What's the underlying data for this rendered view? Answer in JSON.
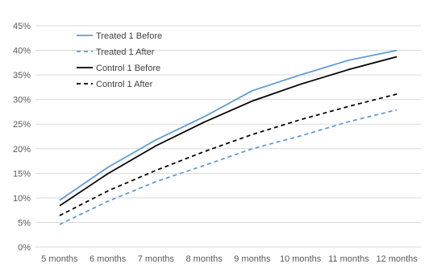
{
  "chart_data": {
    "type": "line",
    "title": "",
    "xlabel": "",
    "ylabel": "",
    "categories": [
      "5 months",
      "6 months",
      "7 months",
      "8 months",
      "9 months",
      "10 months",
      "11 months",
      "12 months"
    ],
    "y_ticks": [
      "0%",
      "5%",
      "10%",
      "15%",
      "20%",
      "25%",
      "30%",
      "35%",
      "40%",
      "45%"
    ],
    "ylim": [
      0,
      45
    ],
    "grid": true,
    "legend_position": "top-left",
    "series": [
      {
        "name": "Treated 1 Before",
        "color": "#5b9bd5",
        "dash": "solid",
        "values": [
          9.5,
          16.2,
          21.8,
          26.5,
          31.8,
          35.0,
          38.0,
          40.0
        ]
      },
      {
        "name": "Treated 1 After",
        "color": "#5b9bd5",
        "dash": "dashed",
        "values": [
          4.6,
          9.3,
          13.3,
          16.6,
          20.0,
          22.6,
          25.5,
          27.9
        ]
      },
      {
        "name": "Control 1 Before",
        "color": "#000000",
        "dash": "solid",
        "values": [
          8.4,
          14.9,
          20.6,
          25.4,
          29.7,
          33.1,
          36.1,
          38.7
        ]
      },
      {
        "name": "Control 1 After",
        "color": "#000000",
        "dash": "dashed",
        "values": [
          6.4,
          11.4,
          15.6,
          19.4,
          22.9,
          25.9,
          28.6,
          31.1
        ]
      }
    ]
  }
}
